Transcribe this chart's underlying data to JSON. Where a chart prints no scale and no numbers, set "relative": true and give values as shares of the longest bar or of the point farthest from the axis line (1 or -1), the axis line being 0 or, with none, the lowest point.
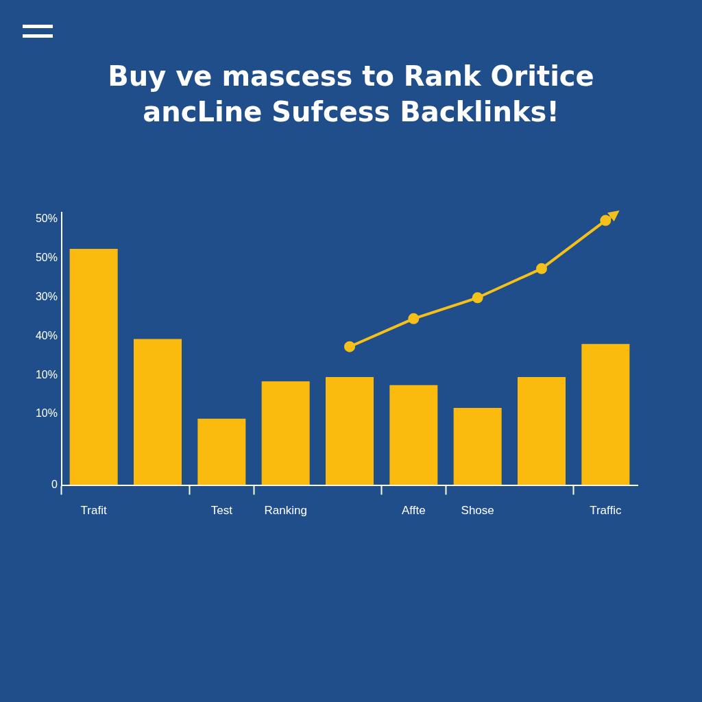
{
  "chart_data": {
    "type": "bar",
    "title": "Buy ve mascess to Rank Oritice ancLine Sufcess Backlinks!",
    "categories": [
      "Trafit",
      null,
      "Test",
      "Ranking",
      null,
      "Affte",
      "Shose",
      null,
      "Traffic"
    ],
    "relative": true,
    "series": [
      {
        "type": "bar",
        "color": "#fbba0e",
        "values": [
          0.893,
          0.552,
          0.251,
          0.392,
          0.408,
          0.378,
          0.292,
          0.408,
          0.533
        ]
      },
      {
        "type": "line",
        "color": "#f5c01a",
        "values": [
          null,
          null,
          null,
          null,
          0.523,
          0.629,
          0.708,
          0.818,
          1
        ]
      }
    ],
    "annotations": [
      "50%",
      "50%",
      "30%",
      "40%",
      "10%",
      "10%",
      "0"
    ],
    "marker": "circle",
    "line_style": "solid"
  }
}
